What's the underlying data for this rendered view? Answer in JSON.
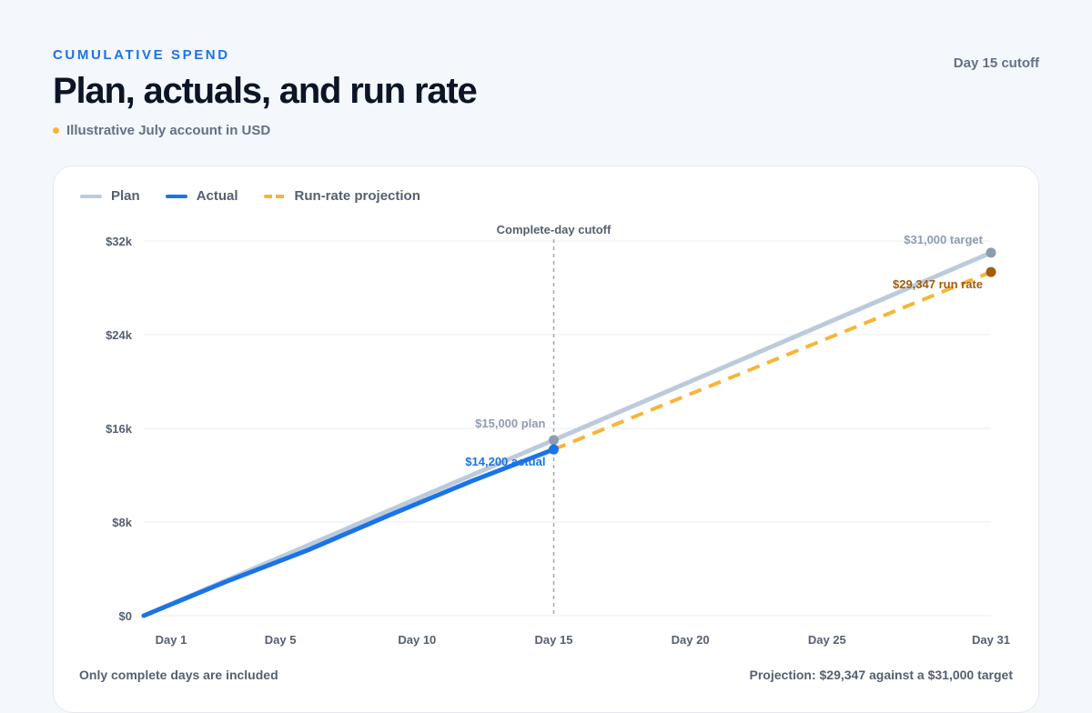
{
  "header": {
    "eyebrow": "CUMULATIVE SPEND",
    "title": "Plan, actuals, and run rate",
    "subtitle": "Illustrative July account in USD",
    "cutoff": "Day 15 cutoff"
  },
  "legend": {
    "plan": "Plan",
    "actual": "Actual",
    "projection": "Run-rate projection"
  },
  "footer": {
    "left": "Only complete days are included",
    "right": "Projection: $29,347 against a $31,000 target"
  },
  "colors": {
    "plan": "#bccbdb",
    "actual": "#1a73e8",
    "projection": "#f6b53a",
    "projection_point": "#a35d0a",
    "plan_point": "#8d9db0",
    "cutoff_line": "#9aa8b8"
  },
  "chart_data": {
    "type": "line",
    "ylim": [
      0,
      32000
    ],
    "xlim": [
      0,
      31
    ],
    "y_ticks": [
      {
        "value": 0,
        "label": "$0"
      },
      {
        "value": 8000,
        "label": "$8k"
      },
      {
        "value": 16000,
        "label": "$16k"
      },
      {
        "value": 24000,
        "label": "$24k"
      },
      {
        "value": 32000,
        "label": "$32k"
      }
    ],
    "x_ticks": [
      {
        "value": 1,
        "label": "Day 1"
      },
      {
        "value": 5,
        "label": "Day 5"
      },
      {
        "value": 10,
        "label": "Day 10"
      },
      {
        "value": 15,
        "label": "Day 15"
      },
      {
        "value": 20,
        "label": "Day 20"
      },
      {
        "value": 25,
        "label": "Day 25"
      },
      {
        "value": 31,
        "label": "Day 31"
      }
    ],
    "series": [
      {
        "name": "Plan",
        "key": "plan",
        "dashed": false,
        "x": [
          0,
          15,
          31
        ],
        "y": [
          0,
          15000,
          31000
        ]
      },
      {
        "name": "Actual",
        "key": "actual",
        "dashed": false,
        "x": [
          0,
          3,
          6,
          9,
          12,
          15
        ],
        "y": [
          0,
          2900,
          5600,
          8600,
          11500,
          14200
        ]
      },
      {
        "name": "Run-rate projection",
        "key": "projection",
        "dashed": true,
        "x": [
          15,
          31
        ],
        "y": [
          14200,
          29347
        ]
      }
    ],
    "cutoff": {
      "x": 15,
      "label": "Complete-day cutoff"
    },
    "annotations": [
      {
        "series": "plan",
        "x": 15,
        "y": 15000,
        "label": "$15,000 plan"
      },
      {
        "series": "actual",
        "x": 15,
        "y": 14200,
        "label": "$14,200 actual"
      },
      {
        "series": "plan",
        "x": 31,
        "y": 31000,
        "label": "$31,000 target"
      },
      {
        "series": "projection",
        "x": 31,
        "y": 29347,
        "label": "$29,347 run rate"
      }
    ]
  }
}
